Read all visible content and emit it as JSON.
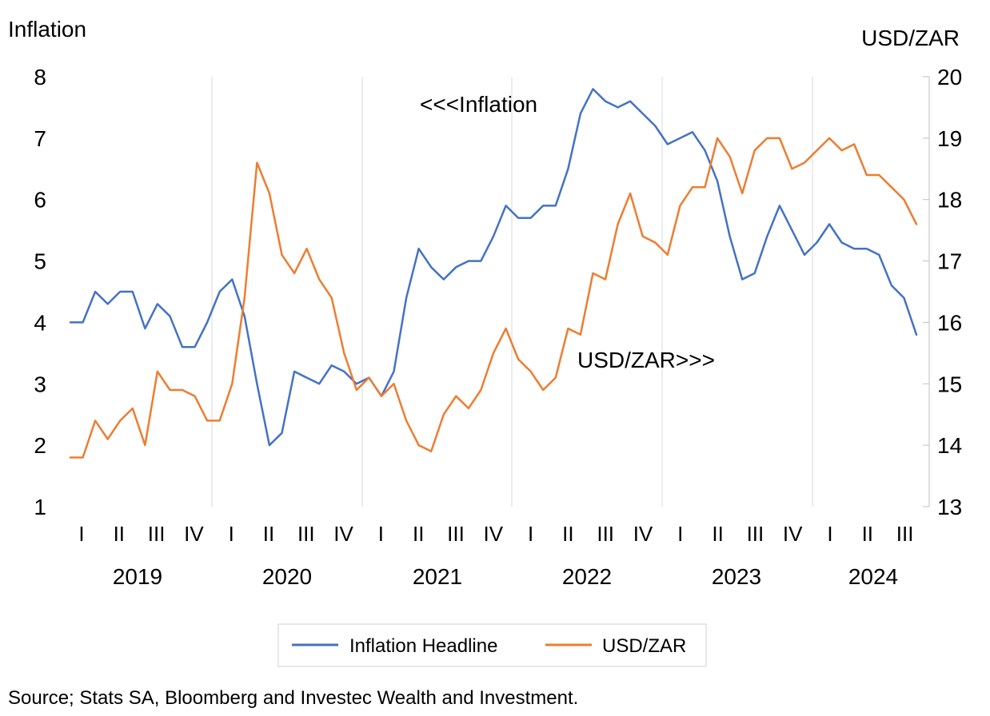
{
  "chart_data": {
    "type": "line",
    "left_axis": {
      "title": "Inflation",
      "range": [
        1,
        8
      ],
      "ticks": [
        "1",
        "2",
        "3",
        "4",
        "5",
        "6",
        "7",
        "8"
      ]
    },
    "right_axis": {
      "title": "USD/ZAR",
      "range": [
        13,
        20
      ],
      "ticks": [
        "13",
        "14",
        "15",
        "16",
        "17",
        "18",
        "19",
        "20"
      ]
    },
    "quarter_labels": [
      "I",
      "II",
      "III",
      "IV",
      "I",
      "II",
      "III",
      "IV",
      "I",
      "II",
      "III",
      "IV",
      "I",
      "II",
      "III",
      "IV",
      "I",
      "II",
      "III",
      "IV",
      "I",
      "II",
      "III"
    ],
    "year_labels": [
      "2019",
      "2020",
      "2021",
      "2022",
      "2023",
      "2024"
    ],
    "grid": "vertical gridlines between years",
    "legend_position": "bottom",
    "annotations": {
      "inflation": "<<<Inflation",
      "usdzar": "USD/ZAR>>>"
    },
    "series": [
      {
        "name": "Inflation Headline",
        "axis": "left",
        "color": "#4472C4",
        "values": [
          4.0,
          4.0,
          4.5,
          4.3,
          4.5,
          4.5,
          3.9,
          4.3,
          4.1,
          3.6,
          3.6,
          4.0,
          4.5,
          4.7,
          4.1,
          3.0,
          2.0,
          2.2,
          3.2,
          3.1,
          3.0,
          3.3,
          3.2,
          3.0,
          3.1,
          2.8,
          3.2,
          4.4,
          5.2,
          4.9,
          4.7,
          4.9,
          5.0,
          5.0,
          5.4,
          5.9,
          5.7,
          5.7,
          5.9,
          5.9,
          6.5,
          7.4,
          7.8,
          7.6,
          7.5,
          7.6,
          7.4,
          7.2,
          6.9,
          7.0,
          7.1,
          6.8,
          6.3,
          5.4,
          4.7,
          4.8,
          5.4,
          5.9,
          5.5,
          5.1,
          5.3,
          5.6,
          5.3,
          5.2,
          5.2,
          5.1,
          4.6,
          4.4,
          3.8
        ]
      },
      {
        "name": "USD/ZAR",
        "axis": "right",
        "color": "#ED7D31",
        "values": [
          13.8,
          13.8,
          14.4,
          14.1,
          14.4,
          14.6,
          14.0,
          15.2,
          14.9,
          14.9,
          14.8,
          14.4,
          14.4,
          15.0,
          16.4,
          18.6,
          18.1,
          17.1,
          16.8,
          17.2,
          16.7,
          16.4,
          15.5,
          14.9,
          15.1,
          14.8,
          15.0,
          14.4,
          14.0,
          13.9,
          14.5,
          14.8,
          14.6,
          14.9,
          15.5,
          15.9,
          15.4,
          15.2,
          14.9,
          15.1,
          15.9,
          15.8,
          16.8,
          16.7,
          17.6,
          18.1,
          17.4,
          17.3,
          17.1,
          17.9,
          18.2,
          18.2,
          19.0,
          18.7,
          18.1,
          18.8,
          19.0,
          19.0,
          18.5,
          18.6,
          18.8,
          19.0,
          18.8,
          18.9,
          18.4,
          18.4,
          18.2,
          18.0,
          17.6
        ]
      }
    ]
  },
  "footer": {
    "source": "Source; Stats SA, Bloomberg and Investec Wealth and Investment."
  }
}
